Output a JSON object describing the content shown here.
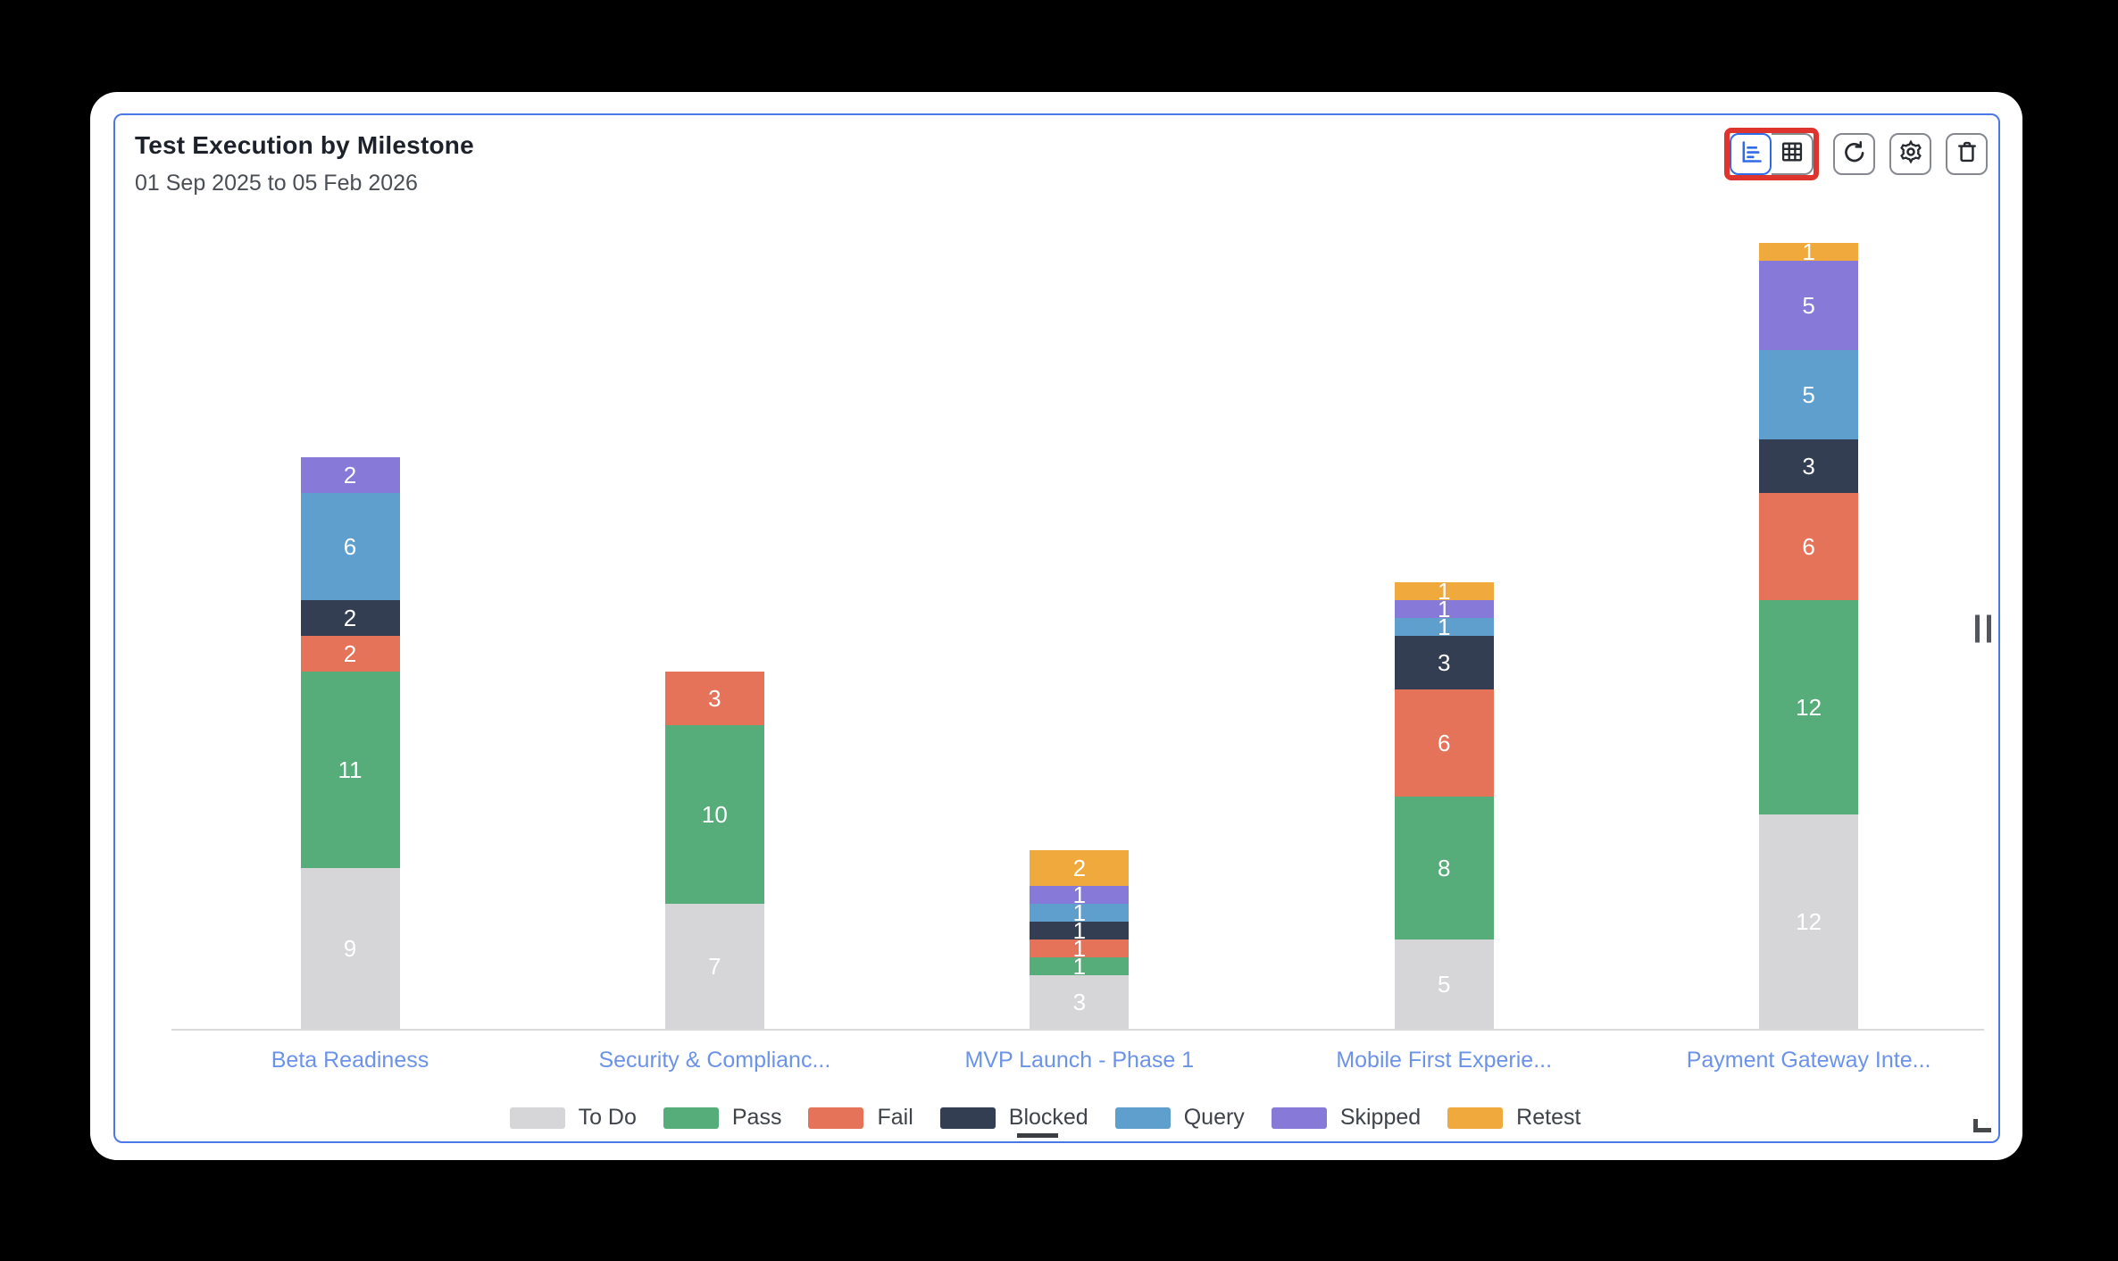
{
  "header": {
    "title": "Test Execution by Milestone",
    "subtitle": "01 Sep 2025 to 05 Feb 2026"
  },
  "toolbar": {
    "view_toggle": {
      "active": "bar-chart",
      "options": [
        "bar-chart",
        "table"
      ]
    },
    "buttons": [
      "refresh",
      "settings",
      "delete"
    ],
    "highlight_color": "#df332d",
    "active_color": "#2f6be6"
  },
  "chart_data": {
    "type": "bar",
    "stacked": true,
    "title": "Test Execution by Milestone",
    "subtitle": "01 Sep 2025 to 05 Feb 2026",
    "categories": [
      "Beta Readiness",
      "Security & Complianc...",
      "MVP Launch - Phase 1",
      "Mobile First Experie...",
      "Payment Gateway Inte..."
    ],
    "series": [
      {
        "name": "To Do",
        "color": "#d6d6d9",
        "values": [
          9,
          7,
          3,
          5,
          12
        ]
      },
      {
        "name": "Pass",
        "color": "#57ad7a",
        "values": [
          11,
          10,
          1,
          8,
          12
        ]
      },
      {
        "name": "Fail",
        "color": "#e5735a",
        "values": [
          2,
          3,
          1,
          6,
          6
        ]
      },
      {
        "name": "Blocked",
        "color": "#333e52",
        "values": [
          2,
          0,
          1,
          3,
          3
        ]
      },
      {
        "name": "Query",
        "color": "#5f9fce",
        "values": [
          6,
          0,
          1,
          1,
          5
        ]
      },
      {
        "name": "Skipped",
        "color": "#8779d8",
        "values": [
          2,
          0,
          1,
          1,
          5
        ]
      },
      {
        "name": "Retest",
        "color": "#efa93d",
        "values": [
          0,
          0,
          2,
          1,
          1
        ]
      }
    ],
    "totals": [
      32,
      20,
      10,
      25,
      44
    ],
    "ylim": [
      0,
      44
    ],
    "grid": false,
    "value_labels": true,
    "value_label_color": "#ffffff",
    "category_label_color": "#6b93e9",
    "legend_position": "bottom",
    "legend_cursor_under": "Blocked"
  },
  "panel": {
    "border_color": "#4a78e8",
    "background": "#ffffff"
  }
}
